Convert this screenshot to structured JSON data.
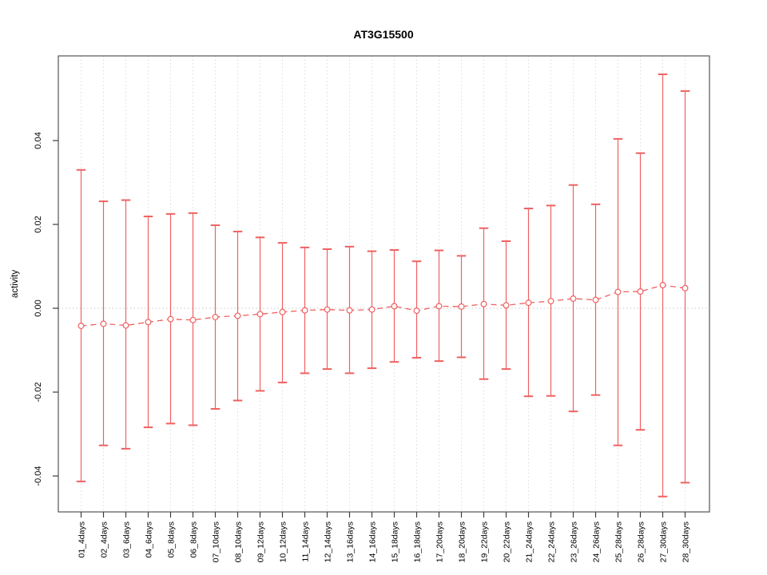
{
  "window": {
    "background": "#ffffff"
  },
  "chart_data": {
    "type": "scatter",
    "title": "AT3G15500",
    "xlabel": "",
    "ylabel": "activity",
    "legend": "none",
    "grid": "vertical dotted gridlines at each category; dotted horizontal line at y=0; full box frame",
    "marker": "open-circle",
    "line_style": "dashed",
    "error_bars": "vertical with horizontal caps",
    "categories": [
      "01_4days",
      "02_4days",
      "03_6days",
      "04_6days",
      "05_8days",
      "06_8days",
      "07_10days",
      "08_10days",
      "09_12days",
      "10_12days",
      "11_14days",
      "12_14days",
      "13_16days",
      "14_16days",
      "15_18days",
      "16_18days",
      "17_20days",
      "18_20days",
      "19_22days",
      "20_22days",
      "21_24days",
      "22_24days",
      "23_26days",
      "24_26days",
      "25_28days",
      "26_28days",
      "27_30days",
      "28_30days"
    ],
    "series": [
      {
        "name": "activity",
        "values": [
          -0.0042,
          -0.0037,
          -0.0041,
          -0.0033,
          -0.0026,
          -0.0028,
          -0.0021,
          -0.0018,
          -0.0014,
          -0.0009,
          -0.0005,
          -0.0003,
          -0.0005,
          -0.0003,
          0.0005,
          -0.0006,
          0.0005,
          0.0004,
          0.001,
          0.0007,
          0.0013,
          0.0017,
          0.0023,
          0.002,
          0.0039,
          0.004,
          0.0055,
          0.0048
        ],
        "upper": [
          0.033,
          0.0255,
          0.0258,
          0.0219,
          0.0225,
          0.0227,
          0.0198,
          0.0183,
          0.0169,
          0.0156,
          0.0145,
          0.0141,
          0.0147,
          0.0136,
          0.0139,
          0.0112,
          0.0138,
          0.0125,
          0.0191,
          0.016,
          0.0238,
          0.0245,
          0.0294,
          0.0248,
          0.0404,
          0.037,
          0.0558,
          0.0518
        ],
        "lower": [
          -0.0413,
          -0.0327,
          -0.0335,
          -0.0284,
          -0.0275,
          -0.0279,
          -0.024,
          -0.022,
          -0.0197,
          -0.0177,
          -0.0155,
          -0.0145,
          -0.0155,
          -0.0143,
          -0.0128,
          -0.0118,
          -0.0126,
          -0.0117,
          -0.0169,
          -0.0145,
          -0.021,
          -0.0209,
          -0.0246,
          -0.0207,
          -0.0327,
          -0.029,
          -0.0449,
          -0.0416
        ]
      }
    ],
    "yticks": [
      -0.04,
      -0.02,
      0.0,
      0.02,
      0.04
    ],
    "ytick_labels": [
      "-0.04",
      "-0.02",
      "0.00",
      "0.02",
      "0.04"
    ],
    "ylim": [
      -0.0486,
      0.0602
    ],
    "colors": {
      "series": "#ef6161",
      "marker_fill": "#ffffff",
      "gridline": "#dcdcdc",
      "zero_line": "#c9c9c9",
      "box": "#606060",
      "tick": "#3c3c3c",
      "text": "#000000"
    }
  }
}
